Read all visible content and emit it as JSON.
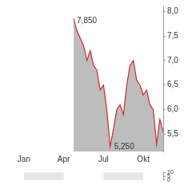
{
  "chart_data": [
    {
      "type": "line",
      "categories": [
        null,
        null,
        null,
        null,
        null,
        null,
        "Jan",
        null,
        null,
        null,
        null,
        null,
        null,
        null,
        null,
        null,
        null,
        null,
        "Apr",
        null,
        null,
        null,
        null,
        null,
        null,
        null,
        null,
        null,
        null,
        null,
        "Jul",
        null,
        null,
        null,
        null,
        null,
        null,
        null,
        null,
        null,
        null,
        null,
        "Okt",
        null,
        null,
        null,
        null,
        null,
        null
      ],
      "values": [
        null,
        null,
        null,
        null,
        null,
        null,
        null,
        null,
        null,
        null,
        null,
        null,
        null,
        null,
        null,
        null,
        null,
        null,
        null,
        null,
        null,
        7.85,
        7.6,
        7.45,
        7.3,
        7.0,
        7.2,
        6.9,
        6.8,
        6.4,
        6.5,
        6.0,
        5.25,
        5.6,
        6.0,
        6.1,
        5.9,
        6.5,
        6.9,
        7.0,
        6.6,
        6.5,
        6.3,
        6.4,
        6.1,
        6.0,
        5.3,
        5.8,
        5.55
      ],
      "color": "#cc2a2a",
      "ylim": [
        5.15,
        8.1
      ],
      "yticks": [
        {
          "value": 5.5,
          "label": "5,5"
        },
        {
          "value": 6.0,
          "label": "6,0"
        },
        {
          "value": 6.5,
          "label": "6,5"
        },
        {
          "value": 7.0,
          "label": "7,0"
        },
        {
          "value": 7.5,
          "label": "7,5"
        },
        {
          "value": 8.0,
          "label": "8,0"
        }
      ],
      "annotations": [
        {
          "value": 7.85,
          "label": "7,850"
        },
        {
          "value": 5.25,
          "label": "5,250"
        }
      ],
      "grid": false
    },
    {
      "type": "bar",
      "categories": [
        null,
        null,
        null,
        null,
        null,
        null,
        "Jan",
        null,
        null,
        null,
        null,
        null,
        null,
        null,
        null,
        null,
        null,
        null,
        "Apr",
        null,
        null,
        null,
        null,
        null,
        null,
        null,
        null,
        null,
        null,
        null,
        "Jul",
        null,
        null,
        null,
        null,
        null,
        null,
        null,
        null,
        null,
        null,
        null,
        "Okt",
        null,
        null,
        null,
        null,
        null,
        null
      ],
      "values": [
        null,
        null,
        null,
        null,
        null,
        null,
        null,
        null,
        null,
        null,
        null,
        null,
        null,
        null,
        null,
        null,
        null,
        null,
        null,
        null,
        null,
        null,
        null,
        null,
        null,
        null,
        null,
        null,
        null,
        null,
        null,
        null,
        null,
        null,
        null,
        null,
        null,
        null,
        null,
        null,
        null,
        null,
        null,
        null,
        null,
        null,
        null,
        null,
        null
      ],
      "ylim": [
        0,
        10
      ],
      "yticks": [
        0,
        5,
        10
      ],
      "tick_labels": "y",
      "grid": false
    }
  ]
}
